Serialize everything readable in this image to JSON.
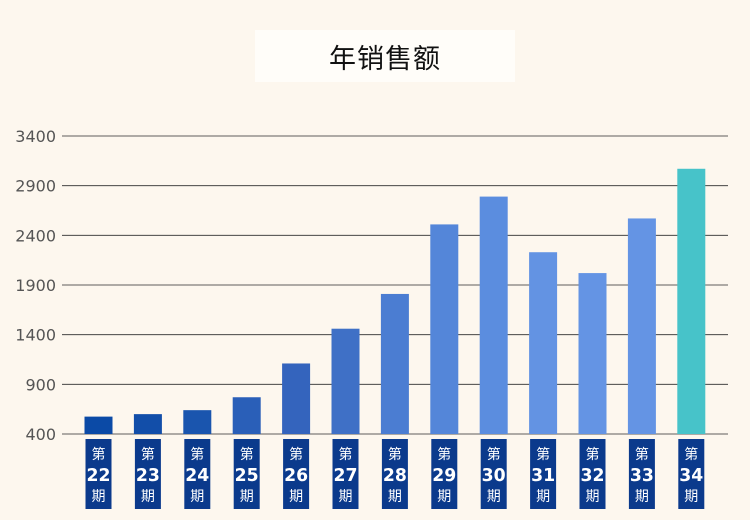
{
  "chart_data": {
    "type": "bar",
    "title": "年销售额",
    "categories": [
      {
        "top": "第",
        "num": "22",
        "bottom": "期"
      },
      {
        "top": "第",
        "num": "23",
        "bottom": "期"
      },
      {
        "top": "第",
        "num": "24",
        "bottom": "期"
      },
      {
        "top": "第",
        "num": "25",
        "bottom": "期"
      },
      {
        "top": "第",
        "num": "26",
        "bottom": "期"
      },
      {
        "top": "第",
        "num": "27",
        "bottom": "期"
      },
      {
        "top": "第",
        "num": "28",
        "bottom": "期"
      },
      {
        "top": "第",
        "num": "29",
        "bottom": "期"
      },
      {
        "top": "第",
        "num": "30",
        "bottom": "期"
      },
      {
        "top": "第",
        "num": "31",
        "bottom": "期"
      },
      {
        "top": "第",
        "num": "32",
        "bottom": "期"
      },
      {
        "top": "第",
        "num": "33",
        "bottom": "期"
      },
      {
        "top": "第",
        "num": "34",
        "bottom": "期"
      }
    ],
    "values": [
      575,
      600,
      640,
      770,
      1110,
      1460,
      1810,
      2510,
      2790,
      2230,
      2020,
      2570,
      3070
    ],
    "yticks": [
      400,
      900,
      1400,
      1900,
      2400,
      2900,
      3400
    ],
    "ylim": [
      400,
      3400
    ],
    "grid": true,
    "colors": [
      "#0b4aa6",
      "#124ea9",
      "#1a55ae",
      "#2a5fb8",
      "#3464bd",
      "#3f70c6",
      "#4b7dd2",
      "#5486d9",
      "#5b8ddf",
      "#6393e3",
      "#6494e4",
      "#6494e4",
      "#47c3c9"
    ],
    "label_box_color": "#0b3a8c"
  }
}
